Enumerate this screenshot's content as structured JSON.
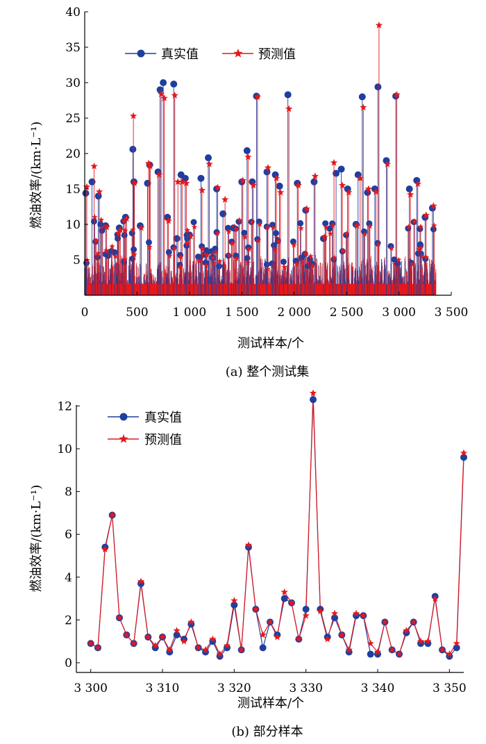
{
  "colors": {
    "true_series": "#1f3f9e",
    "pred_series": "#e3191c",
    "axis": "#000000"
  },
  "chart_data": [
    {
      "type": "line",
      "caption": "(a) 整个测试集",
      "xlabel": "测试样本/个",
      "ylabel": "燃油效率/(km·L⁻¹)",
      "xlim": [
        0,
        3500
      ],
      "ylim": [
        0,
        40
      ],
      "xticks": [
        0,
        500,
        1000,
        1500,
        2000,
        2500,
        3000,
        3500
      ],
      "xtick_labels": [
        "0",
        "500",
        "1 000",
        "1 500",
        "2 000",
        "2 500",
        "3 000",
        "3 500"
      ],
      "yticks": [
        5,
        10,
        15,
        20,
        25,
        30,
        35,
        40
      ],
      "ytick_labels": [
        "5",
        "10",
        "15",
        "20",
        "25",
        "30",
        "35",
        "40"
      ],
      "grid": false,
      "legend_position": "top-left",
      "series": [
        {
          "name": "真实值",
          "marker": "circle",
          "peaks": [
            [
              10,
              14.4
            ],
            [
              70,
              16
            ],
            [
              130,
              14
            ],
            [
              200,
              9.8
            ],
            [
              330,
              9.5
            ],
            [
              390,
              11
            ],
            [
              460,
              20.6
            ],
            [
              470,
              16
            ],
            [
              530,
              9.8
            ],
            [
              600,
              15.8
            ],
            [
              620,
              18.4
            ],
            [
              700,
              17.4
            ],
            [
              720,
              29
            ],
            [
              750,
              30
            ],
            [
              790,
              11
            ],
            [
              850,
              29.8
            ],
            [
              880,
              8
            ],
            [
              920,
              17
            ],
            [
              960,
              16.5
            ],
            [
              1000,
              8.5
            ],
            [
              1110,
              16.5
            ],
            [
              1180,
              19.4
            ],
            [
              1260,
              15
            ],
            [
              1320,
              11.5
            ],
            [
              1420,
              9.5
            ],
            [
              1500,
              16
            ],
            [
              1550,
              20.4
            ],
            [
              1600,
              16
            ],
            [
              1640,
              28.1
            ],
            [
              1740,
              17.4
            ],
            [
              1820,
              17
            ],
            [
              1860,
              15.4
            ],
            [
              1940,
              28.3
            ],
            [
              2030,
              15.8
            ],
            [
              2110,
              12
            ],
            [
              2190,
              16
            ],
            [
              2280,
              8
            ],
            [
              2400,
              17.2
            ],
            [
              2450,
              17.8
            ],
            [
              2510,
              15
            ],
            [
              2590,
              10
            ],
            [
              2610,
              17
            ],
            [
              2650,
              28
            ],
            [
              2700,
              14.5
            ],
            [
              2770,
              15
            ],
            [
              2800,
              29.4
            ],
            [
              2880,
              19
            ],
            [
              2970,
              28.1
            ],
            [
              3100,
              15
            ],
            [
              3170,
              16.2
            ],
            [
              3250,
              11
            ],
            [
              3320,
              12.3
            ]
          ]
        },
        {
          "name": "预测值",
          "marker": "star",
          "peaks": [
            [
              20,
              15.3
            ],
            [
              90,
              18.2
            ],
            [
              140,
              14.6
            ],
            [
              210,
              9.6
            ],
            [
              340,
              9.2
            ],
            [
              400,
              10.8
            ],
            [
              465,
              25.3
            ],
            [
              475,
              15.8
            ],
            [
              540,
              9.5
            ],
            [
              610,
              18.6
            ],
            [
              625,
              18.2
            ],
            [
              710,
              17
            ],
            [
              730,
              28.4
            ],
            [
              760,
              27.8
            ],
            [
              800,
              10.5
            ],
            [
              860,
              28.2
            ],
            [
              890,
              16
            ],
            [
              930,
              16
            ],
            [
              970,
              15.8
            ],
            [
              1010,
              8.3
            ],
            [
              1120,
              14.8
            ],
            [
              1190,
              18.5
            ],
            [
              1270,
              15.2
            ],
            [
              1340,
              13.5
            ],
            [
              1430,
              9.6
            ],
            [
              1510,
              16.2
            ],
            [
              1560,
              19.5
            ],
            [
              1610,
              15.5
            ],
            [
              1650,
              28
            ],
            [
              1750,
              18
            ],
            [
              1830,
              16.5
            ],
            [
              1870,
              14.5
            ],
            [
              1950,
              26.3
            ],
            [
              2040,
              15.5
            ],
            [
              2120,
              12.2
            ],
            [
              2200,
              16.8
            ],
            [
              2290,
              8.2
            ],
            [
              2380,
              18.7
            ],
            [
              2460,
              15.5
            ],
            [
              2520,
              14.5
            ],
            [
              2600,
              9.8
            ],
            [
              2630,
              16.5
            ],
            [
              2660,
              26.5
            ],
            [
              2710,
              15
            ],
            [
              2780,
              14.6
            ],
            [
              2810,
              38.1
            ],
            [
              2890,
              18.5
            ],
            [
              2980,
              28.3
            ],
            [
              3110,
              14.2
            ],
            [
              3180,
              15.7
            ],
            [
              3260,
              11.3
            ],
            [
              3330,
              12.6
            ]
          ]
        }
      ]
    },
    {
      "type": "line",
      "caption": "(b) 部分样本",
      "xlabel": "测试样本/个",
      "ylabel": "燃油效率/(km·L⁻¹)",
      "xlim": [
        3298,
        3352
      ],
      "ylim": [
        0,
        12.5
      ],
      "xticks": [
        3300,
        3310,
        3320,
        3330,
        3340,
        3350
      ],
      "xtick_labels": [
        "3 300",
        "3 310",
        "3 320",
        "3 330",
        "3 340",
        "3 350"
      ],
      "yticks": [
        0,
        2,
        4,
        6,
        8,
        10,
        12
      ],
      "ytick_labels": [
        "0",
        "2",
        "4",
        "6",
        "8",
        "10",
        "12"
      ],
      "grid": false,
      "legend_position": "top-left",
      "x": [
        3300,
        3301,
        3302,
        3303,
        3304,
        3305,
        3306,
        3307,
        3308,
        3309,
        3310,
        3311,
        3312,
        3313,
        3314,
        3315,
        3316,
        3317,
        3318,
        3319,
        3320,
        3321,
        3322,
        3323,
        3324,
        3325,
        3326,
        3327,
        3328,
        3329,
        3330,
        3331,
        3332,
        3333,
        3334,
        3335,
        3336,
        3337,
        3338,
        3339,
        3340,
        3341,
        3342,
        3343,
        3344,
        3345,
        3346,
        3347,
        3348,
        3349,
        3350,
        3351,
        3352
      ],
      "series": [
        {
          "name": "真实值",
          "marker": "circle",
          "values": [
            0.9,
            0.7,
            5.4,
            6.9,
            2.1,
            1.3,
            0.9,
            3.7,
            1.2,
            0.7,
            1.2,
            0.5,
            1.3,
            1.1,
            1.8,
            0.7,
            0.5,
            1.0,
            0.3,
            0.7,
            2.7,
            0.6,
            5.4,
            2.5,
            0.7,
            1.9,
            1.3,
            3.0,
            2.8,
            1.1,
            2.5,
            12.3,
            2.5,
            1.2,
            2.1,
            1.3,
            0.5,
            2.2,
            2.2,
            0.4,
            0.4,
            1.9,
            0.6,
            0.4,
            1.4,
            1.9,
            0.9,
            0.9,
            3.1,
            0.6,
            0.3,
            0.7,
            9.6
          ]
        },
        {
          "name": "预测值",
          "marker": "star",
          "values": [
            0.9,
            0.7,
            5.3,
            6.9,
            2.1,
            1.3,
            0.9,
            3.8,
            1.2,
            0.8,
            1.2,
            0.6,
            1.5,
            1.0,
            1.9,
            0.7,
            0.6,
            1.1,
            0.4,
            0.8,
            2.9,
            0.6,
            5.5,
            2.5,
            1.3,
            1.9,
            1.2,
            3.3,
            2.8,
            1.1,
            2.2,
            12.6,
            2.4,
            1.1,
            2.3,
            1.3,
            0.6,
            2.3,
            2.2,
            0.9,
            0.5,
            1.9,
            0.6,
            0.4,
            1.5,
            1.9,
            1.0,
            1.0,
            3.0,
            0.6,
            0.4,
            0.9,
            9.8
          ]
        }
      ]
    }
  ]
}
